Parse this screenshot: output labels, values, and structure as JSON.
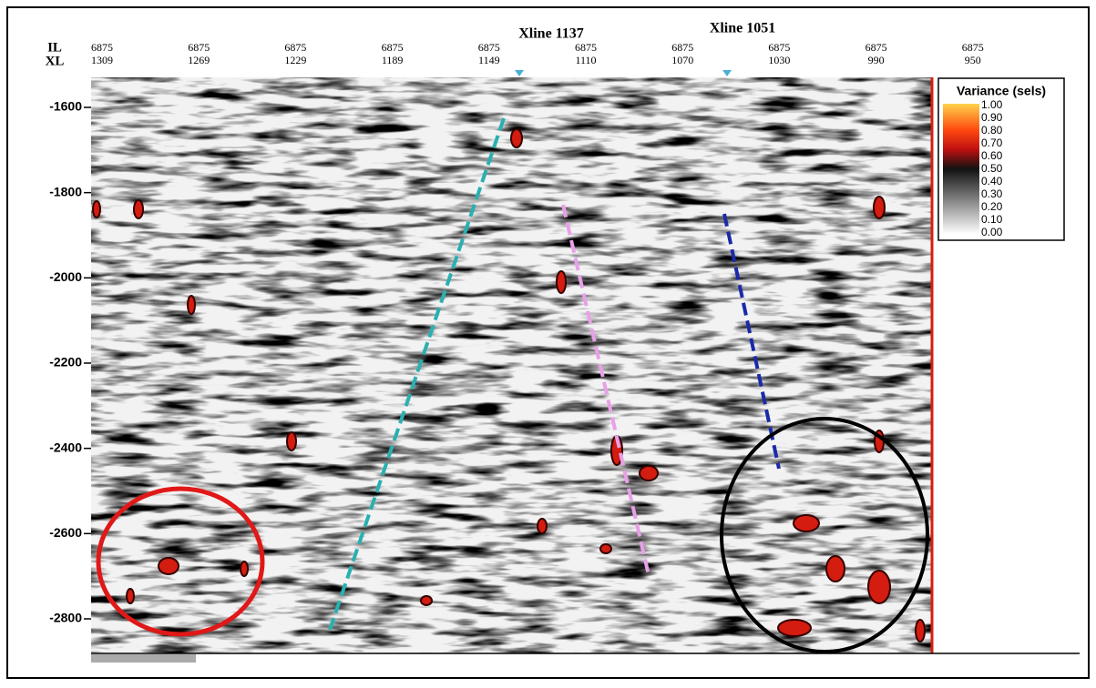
{
  "figure": {
    "x_axis": {
      "row_labels": [
        "IL",
        "XL"
      ],
      "il_ticks": [
        6875,
        6875,
        6875,
        6875,
        6875,
        6875,
        6875,
        6875,
        6875,
        6875
      ],
      "xl_ticks": [
        1309,
        1269,
        1229,
        1189,
        1149,
        1110,
        1070,
        1030,
        990,
        950
      ]
    },
    "y_axis": {
      "ticks": [
        -1600,
        -1800,
        -2000,
        -2200,
        -2400,
        -2600,
        -2800
      ]
    },
    "annotations": [
      "Xline 1137",
      "Xline 1051"
    ],
    "colorbar": {
      "title": "Variance (sels)",
      "labels": [
        "1.00",
        "0.90",
        "0.80",
        "0.70",
        "0.60",
        "0.50",
        "0.40",
        "0.30",
        "0.20",
        "0.10",
        "0.00"
      ]
    }
  }
}
